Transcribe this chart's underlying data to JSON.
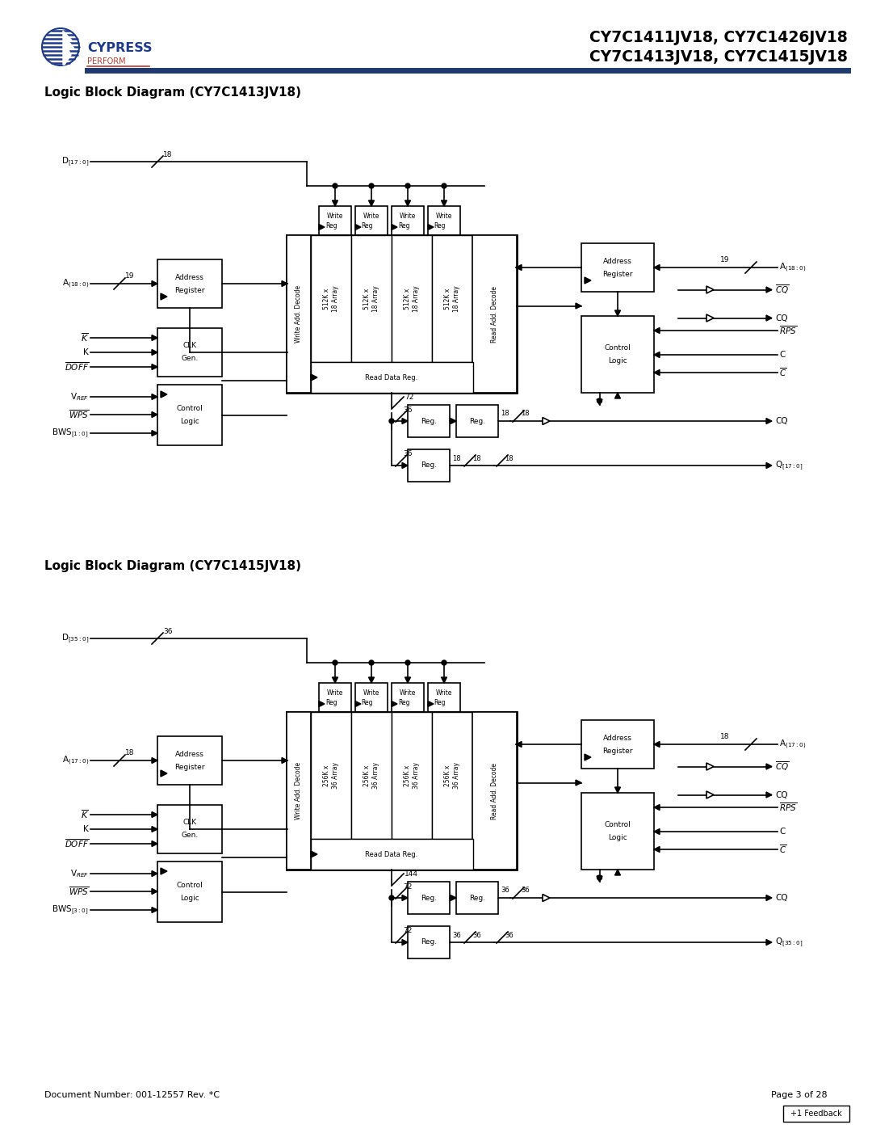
{
  "title_line1": "CY7C1411JV18, CY7C1426JV18",
  "title_line2": "CY7C1413JV18, CY7C1415JV18",
  "diagram1_title": "Logic Block Diagram (CY7C1413JV18)",
  "diagram2_title": "Logic Block Diagram (CY7C1415JV18)",
  "doc_number": "Document Number: 001-12557 Rev. *C",
  "page": "Page 3 of 28",
  "feedback": "+1 Feedback",
  "bg_color": "#ffffff",
  "cypress_blue": "#1e3a8a",
  "header_blue": "#1e3a6e",
  "red_color": "#c0392b",
  "diagram1_arrays": [
    "512K x\n18 Array",
    "512K x\n18 Array",
    "512K x\n18 Array",
    "512K x\n18 Array"
  ],
  "diagram2_arrays": [
    "256K x\n36 Array",
    "256K x\n36 Array",
    "256K x\n36 Array",
    "256K x\n36 Array"
  ],
  "d1_bus": "18",
  "d2_bus": "36",
  "d1_addr_bus": "19",
  "d2_addr_bus": "18",
  "d1_out_bus": "72",
  "d2_out_bus": "144",
  "d1_half_bus": "36",
  "d2_half_bus": "72",
  "d1_q_label": "Q$_{[17:0]}$",
  "d2_q_label": "Q$_{[35:0]}$",
  "d1_a_label_l": "A$_{(18:0)}$",
  "d2_a_label_l": "A$_{(17:0)}$",
  "d1_a_label_r": "A$_{(18:0)}$",
  "d2_a_label_r": "A$_{(17:0)}$",
  "d1_d_label": "D$_{[17:0]}$",
  "d2_d_label": "D$_{[35:0]}$",
  "d1_bws": "BWS$_{[1:0]}$",
  "d2_bws": "BWS$_{[3:0]}$",
  "d1_out_18": "18",
  "d2_out_36": "36"
}
